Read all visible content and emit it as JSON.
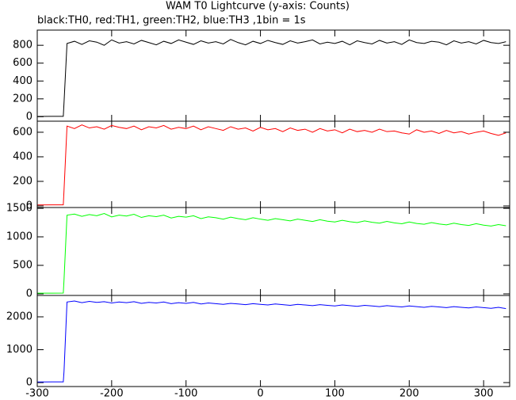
{
  "chart_data": {
    "type": "line",
    "title": "WAM T0 Lightcurve (y-axis: Counts)",
    "subtitle": "black:TH0, red:TH1, green:TH2, blue:TH3 ,1bin = 1s",
    "x": [
      -300,
      -280,
      -265,
      -264,
      -260,
      -250,
      -240,
      -230,
      -220,
      -210,
      -200,
      -190,
      -180,
      -170,
      -160,
      -150,
      -140,
      -130,
      -120,
      -110,
      -100,
      -90,
      -80,
      -70,
      -60,
      -50,
      -40,
      -30,
      -20,
      -10,
      0,
      10,
      20,
      30,
      40,
      50,
      60,
      70,
      80,
      90,
      100,
      110,
      120,
      130,
      140,
      150,
      160,
      170,
      180,
      190,
      200,
      210,
      220,
      230,
      240,
      250,
      260,
      270,
      280,
      290,
      300,
      310,
      320,
      330
    ],
    "xlim": [
      -300,
      335
    ],
    "xticks": [
      -300,
      -200,
      -100,
      0,
      100,
      200,
      300
    ],
    "series": [
      {
        "color": "#000000",
        "ylim": [
          -50,
          970
        ],
        "yticks": [
          0,
          200,
          400,
          600,
          800
        ],
        "values": [
          3,
          4,
          4,
          160,
          820,
          845,
          810,
          850,
          835,
          800,
          860,
          825,
          840,
          815,
          855,
          830,
          805,
          845,
          820,
          860,
          835,
          810,
          850,
          825,
          840,
          815,
          865,
          830,
          805,
          845,
          820,
          855,
          830,
          810,
          850,
          825,
          840,
          860,
          815,
          835,
          820,
          845,
          805,
          850,
          830,
          815,
          855,
          825,
          840,
          810,
          860,
          830,
          820,
          845,
          835,
          805,
          850,
          825,
          840,
          815,
          855,
          830,
          820,
          840
        ]
      },
      {
        "color": "#ff0000",
        "ylim": [
          -13,
          690
        ],
        "yticks": [
          0,
          200,
          400,
          600
        ],
        "values": [
          8,
          9,
          9,
          130,
          650,
          630,
          660,
          635,
          645,
          625,
          655,
          640,
          630,
          650,
          620,
          645,
          635,
          655,
          625,
          640,
          630,
          650,
          620,
          645,
          630,
          615,
          645,
          625,
          635,
          610,
          640,
          620,
          630,
          605,
          635,
          615,
          625,
          600,
          630,
          610,
          620,
          595,
          625,
          605,
          615,
          600,
          625,
          605,
          610,
          595,
          585,
          620,
          600,
          610,
          590,
          615,
          595,
          605,
          585,
          600,
          610,
          590,
          575,
          595
        ]
      },
      {
        "color": "#00ff00",
        "ylim": [
          -28,
          1514
        ],
        "yticks": [
          0,
          500,
          1000,
          1500
        ],
        "values": [
          12,
          12,
          13,
          250,
          1380,
          1400,
          1360,
          1390,
          1370,
          1410,
          1350,
          1380,
          1365,
          1395,
          1340,
          1370,
          1355,
          1380,
          1330,
          1360,
          1345,
          1370,
          1320,
          1350,
          1335,
          1310,
          1345,
          1320,
          1300,
          1335,
          1310,
          1290,
          1320,
          1300,
          1280,
          1310,
          1290,
          1270,
          1300,
          1275,
          1260,
          1290,
          1265,
          1250,
          1280,
          1255,
          1240,
          1270,
          1245,
          1230,
          1260,
          1235,
          1220,
          1250,
          1225,
          1210,
          1240,
          1215,
          1200,
          1230,
          1205,
          1190,
          1215,
          1195
        ]
      },
      {
        "color": "#0000ff",
        "ylim": [
          -120,
          2650
        ],
        "yticks": [
          0,
          1000,
          2000
        ],
        "values": [
          20,
          22,
          22,
          350,
          2450,
          2480,
          2430,
          2470,
          2440,
          2460,
          2420,
          2450,
          2430,
          2460,
          2410,
          2440,
          2420,
          2450,
          2400,
          2430,
          2410,
          2440,
          2390,
          2420,
          2400,
          2380,
          2410,
          2390,
          2370,
          2400,
          2380,
          2360,
          2390,
          2370,
          2350,
          2380,
          2360,
          2340,
          2370,
          2350,
          2330,
          2360,
          2340,
          2320,
          2350,
          2330,
          2310,
          2340,
          2320,
          2300,
          2330,
          2310,
          2290,
          2320,
          2300,
          2280,
          2310,
          2290,
          2270,
          2300,
          2280,
          2260,
          2290,
          2250
        ]
      }
    ]
  }
}
